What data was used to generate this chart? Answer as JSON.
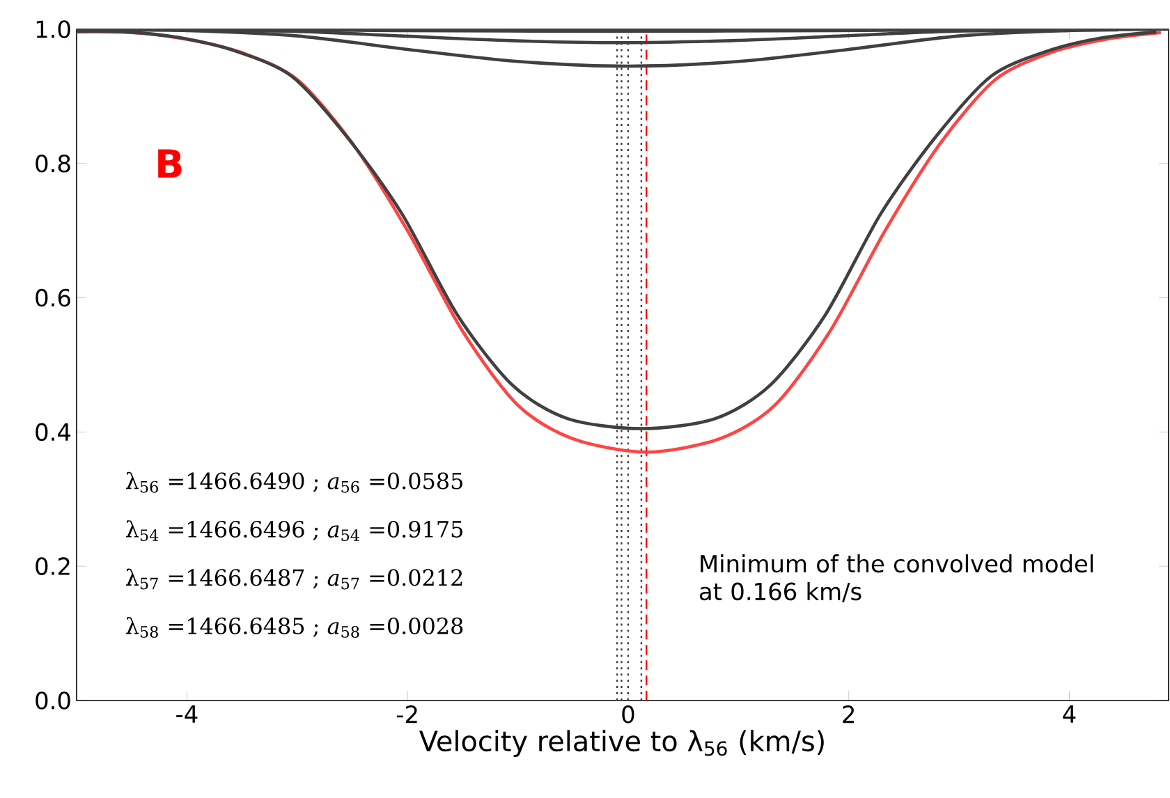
{
  "chart_data": {
    "type": "line",
    "title": "B",
    "xlabel": "Velocity relative to λ$_{56}$ (km/s)",
    "xlim": [
      -5,
      4.9
    ],
    "ylim": [
      0,
      1
    ],
    "xticks": [
      -4,
      -2,
      0,
      2,
      4
    ],
    "yticks": [
      {
        "value": 0,
        "label": "0.0"
      },
      {
        "value": 0.2,
        "label": "0.2"
      },
      {
        "value": 0.4,
        "label": "0.4"
      },
      {
        "value": 0.6,
        "label": "0.6"
      },
      {
        "value": 0.8,
        "label": "0.8"
      },
      {
        "value": 1,
        "label": "1.0"
      }
    ],
    "grid": false,
    "marker": "none",
    "line_style": "solid",
    "series": [
      {
        "color": "#ff4444",
        "x": [
          -5.0,
          -4.5,
          -4.0,
          -3.5,
          -3.0,
          -2.5,
          -2.0,
          -1.5,
          -1.0,
          -0.5,
          0.166,
          0.83,
          1.33,
          1.83,
          2.33,
          2.83,
          3.33,
          3.83,
          4.33,
          4.83
        ],
        "values": [
          0.996,
          0.995,
          0.985,
          0.965,
          0.925,
          0.83,
          0.7,
          0.55,
          0.44,
          0.39,
          0.37,
          0.39,
          0.44,
          0.55,
          0.7,
          0.83,
          0.925,
          0.965,
          0.985,
          0.995
        ]
      },
      {
        "color": "#404040",
        "x": [
          -5.0,
          -4.55,
          -4.05,
          -3.55,
          -3.05,
          -2.55,
          -2.05,
          -1.55,
          -1.05,
          -0.55,
          0.12,
          0.79,
          1.29,
          1.79,
          2.29,
          2.79,
          3.29,
          3.79,
          4.29,
          4.79
        ],
        "values": [
          0.997,
          0.996,
          0.987,
          0.967,
          0.93,
          0.84,
          0.725,
          0.575,
          0.47,
          0.42,
          0.405,
          0.42,
          0.47,
          0.575,
          0.725,
          0.84,
          0.93,
          0.967,
          0.987,
          0.996
        ]
      },
      {
        "color": "#404040",
        "x": [
          -5.0,
          -4.0,
          -3.0,
          -2.0,
          -1.0,
          0.0,
          1.0,
          2.0,
          3.0,
          4.0,
          4.9
        ],
        "values": [
          1.0,
          0.998,
          0.99,
          0.97,
          0.952,
          0.945,
          0.952,
          0.97,
          0.99,
          0.998,
          1.0
        ]
      },
      {
        "color": "#404040",
        "x": [
          -4.56,
          -3.06,
          -2.06,
          -1.06,
          -0.06,
          0.94,
          1.94,
          2.94,
          4.44
        ],
        "values": [
          0.999,
          0.997,
          0.99,
          0.983,
          0.98,
          0.983,
          0.99,
          0.997,
          0.999
        ]
      },
      {
        "color": "#404040",
        "x": [
          -4.1,
          -2.1,
          -0.1,
          1.9,
          3.9
        ],
        "values": [
          1.0,
          0.998,
          0.997,
          0.998,
          1.0
        ]
      }
    ],
    "ref_lines": [
      {
        "axis": "x",
        "value": -0.1,
        "color": "#404040",
        "line_style": "dotted"
      },
      {
        "axis": "x",
        "value": -0.06,
        "color": "#404040",
        "line_style": "dotted"
      },
      {
        "axis": "x",
        "value": 0,
        "color": "#404040",
        "line_style": "dotted"
      },
      {
        "axis": "x",
        "value": 0.12,
        "color": "#404040",
        "line_style": "dotted"
      },
      {
        "axis": "x",
        "value": 0.166,
        "color": "#ff0000",
        "line_style": "dashed"
      }
    ],
    "annotations": [
      "λ$_{56}$ =1466.6490 ; *a*$_{56}$ =0.0585",
      "λ$_{54}$ =1466.6496 ; *a*$_{54}$ =0.9175",
      "λ$_{57}$ =1466.6487 ; *a*$_{57}$ =0.0212",
      "λ$_{58}$ =1466.6485 ; *a*$_{58}$ =0.0028",
      "Minimum of the convolved model at 0.166 km/s"
    ]
  }
}
